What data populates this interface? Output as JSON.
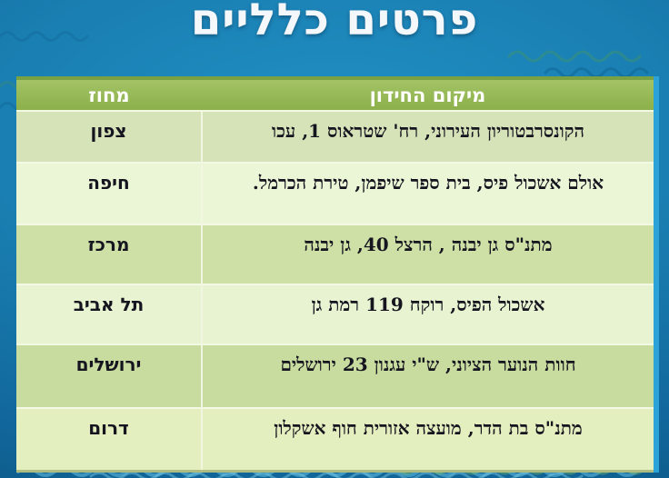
{
  "slide": {
    "title": "פרטים כלליים"
  },
  "table": {
    "headers": {
      "location": "מיקום החידון",
      "district": "מחוז"
    },
    "rows": [
      {
        "district": "צפון",
        "location": "הקונסרבטוריון העירוני, רח' שטראוס 1, עכו"
      },
      {
        "district": "חיפה",
        "location": "אולם אשכול פיס, בית ספר שיפמן, טירת הכרמל."
      },
      {
        "district": "מרכז",
        "location": "מתנ\"ס גן יבנה , הרצל 40, גן יבנה"
      },
      {
        "district": "תל אביב",
        "location": "אשכול הפיס, רוקח 119 רמת גן"
      },
      {
        "district": "ירושלים",
        "location": "חוות הנוער הציוני, ש\"י עגנון 23 ירושלים"
      },
      {
        "district": "דרום",
        "location": "מתנ\"ס בת הדר, מועצה אזורית חוף אשקלון"
      }
    ],
    "row_colors": [
      "#d6e2b8",
      "#ebf6d6",
      "#cfe0a7",
      "#e8f3d1",
      "#c9dc9f",
      "#e3efbe"
    ],
    "header_bg": "#94b854",
    "divider_color": "#f2f8e2",
    "outer_border_color": "#2ba2d8",
    "text_color": "#15151f",
    "header_text_color": "#ffffff"
  },
  "background": {
    "base_blue": "#1a7fb2",
    "accent_light": "#2090c4",
    "accent_dark": "#0b547f",
    "title_color": "#f4f8fb"
  }
}
